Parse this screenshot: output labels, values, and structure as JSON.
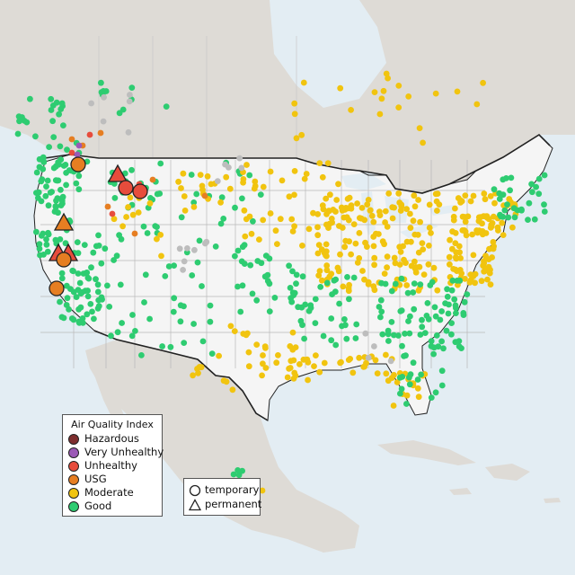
{
  "legend": {
    "title": "Air Quality Index",
    "categories": [
      {
        "key": "hazardous",
        "label": "Hazardous",
        "color": "#7e2e2e"
      },
      {
        "key": "very_unhealthy",
        "label": "Very Unhealthy",
        "color": "#9b59b6"
      },
      {
        "key": "unhealthy",
        "label": "Unhealthy",
        "color": "#e74c3c"
      },
      {
        "key": "usg",
        "label": "USG",
        "color": "#e67e22"
      },
      {
        "key": "moderate",
        "label": "Moderate",
        "color": "#f1c40f"
      },
      {
        "key": "good",
        "label": "Good",
        "color": "#2ecc71"
      }
    ],
    "monitor_types": [
      {
        "key": "temporary",
        "label": "temporary",
        "shape": "circle-icon"
      },
      {
        "key": "permanent",
        "label": "permanent",
        "shape": "triangle-icon"
      }
    ]
  },
  "colors": {
    "water": "#e3edf3",
    "land_us": "#f5f5f5",
    "land_other": "#dedbd6",
    "nodata": "#bdbdbd",
    "border": "#222222"
  }
}
